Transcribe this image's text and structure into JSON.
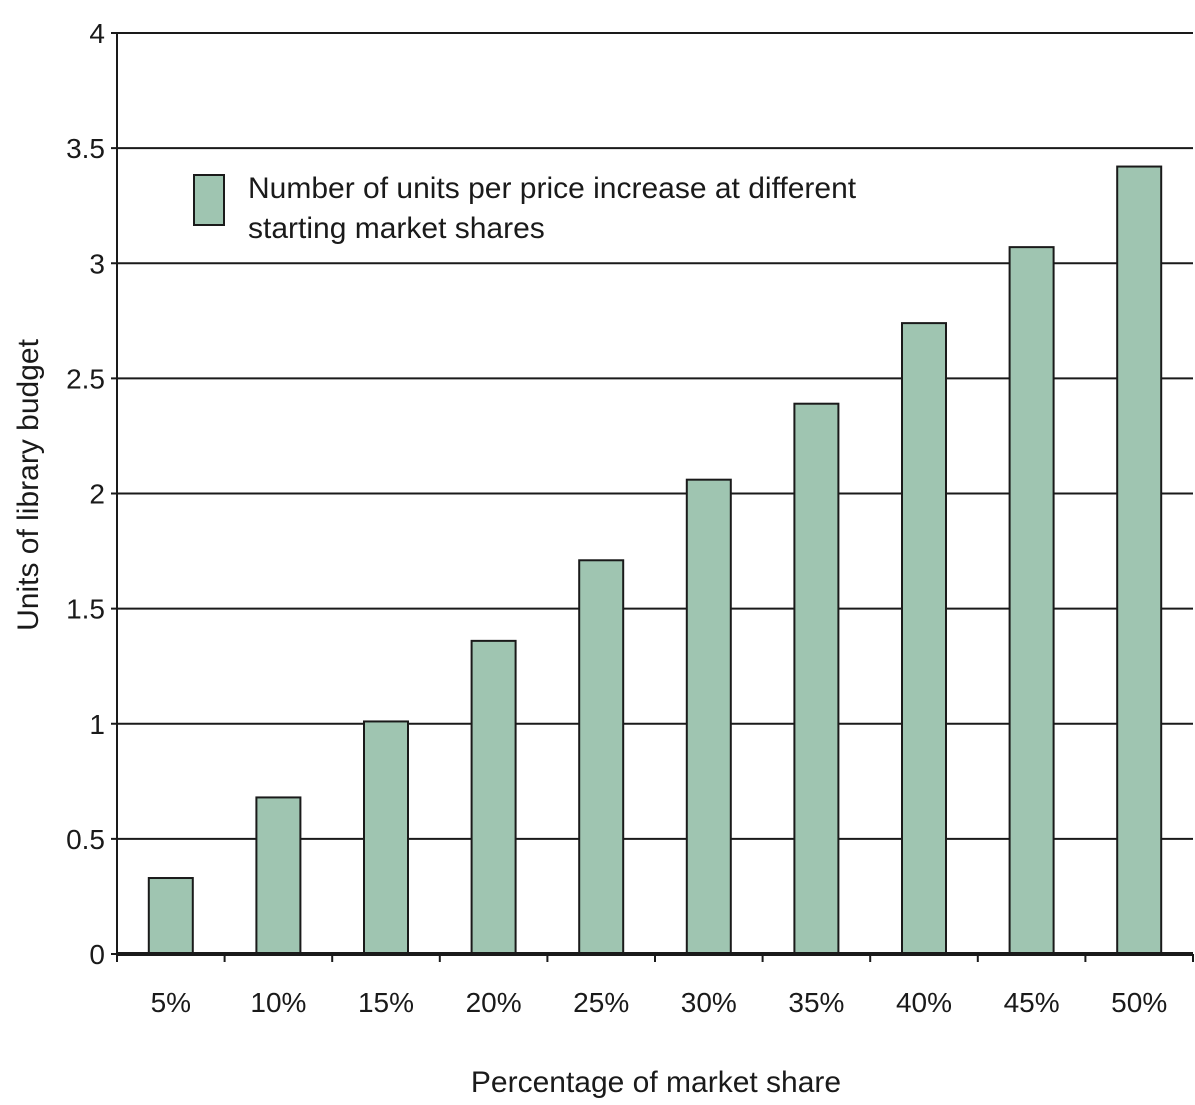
{
  "chart_data": {
    "type": "bar",
    "categories": [
      "5%",
      "10%",
      "15%",
      "20%",
      "25%",
      "30%",
      "35%",
      "40%",
      "45%",
      "50%"
    ],
    "series": [
      {
        "name": "Number of units per price increase at different starting market shares",
        "values": [
          0.33,
          0.68,
          1.01,
          1.36,
          1.71,
          2.06,
          2.39,
          2.74,
          3.07,
          3.42
        ]
      }
    ],
    "title": "",
    "xlabel": "Percentage of market share",
    "ylabel": "Units of library budget",
    "ylim": [
      0,
      4
    ],
    "yticks": [
      "0",
      "0.5",
      "1",
      "1.5",
      "2",
      "2.5",
      "3",
      "3.5",
      "4"
    ],
    "grid": true,
    "legend_position": "top-left",
    "legend_lines": [
      "Number of units per price increase at different",
      "starting market shares"
    ],
    "colors": {
      "bar_fill": "#9fc5b1",
      "bar_stroke": "#1a1a1a",
      "grid": "#1a1a1a",
      "axis": "#1a1a1a"
    }
  }
}
